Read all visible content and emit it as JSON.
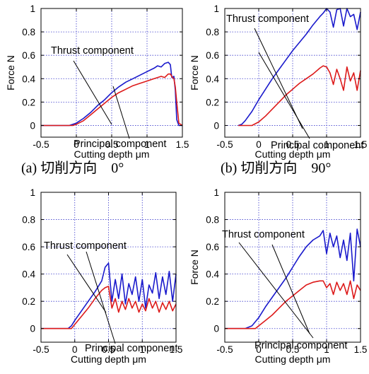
{
  "chart_data": [
    {
      "type": "line",
      "xlabel": "Cutting depth μm",
      "ylabel": "Force N",
      "xlim": [
        -0.5,
        1.5
      ],
      "ylim": [
        -0.1,
        1.0
      ],
      "xticks": [
        "-0.5",
        "0",
        "0.5",
        "1",
        "1.5"
      ],
      "yticks": [
        "0",
        "0.2",
        "0.4",
        "0.6",
        "0.8",
        "1"
      ],
      "grid": true,
      "caption": "(a) 切削方向　0°",
      "annotations": [
        "Thrust component",
        "Principal component"
      ],
      "series": [
        {
          "color": "#1a1acc",
          "x": [
            -0.5,
            -0.1,
            0.0,
            0.1,
            0.2,
            0.3,
            0.4,
            0.5,
            0.6,
            0.7,
            0.8,
            0.9,
            1.0,
            1.1,
            1.15,
            1.2,
            1.25,
            1.3,
            1.33,
            1.35,
            1.38,
            1.4,
            1.42,
            1.45,
            1.5
          ],
          "y": [
            0.0,
            0.0,
            0.02,
            0.06,
            0.11,
            0.17,
            0.22,
            0.28,
            0.33,
            0.37,
            0.4,
            0.43,
            0.46,
            0.49,
            0.51,
            0.5,
            0.53,
            0.54,
            0.52,
            0.41,
            0.42,
            0.3,
            0.05,
            0.0,
            0.0
          ]
        },
        {
          "color": "#dd1a1a",
          "x": [
            -0.5,
            -0.05,
            0.0,
            0.1,
            0.2,
            0.3,
            0.4,
            0.5,
            0.6,
            0.7,
            0.8,
            0.9,
            1.0,
            1.1,
            1.2,
            1.25,
            1.3,
            1.33,
            1.36,
            1.38,
            1.4,
            1.42,
            1.45,
            1.5
          ],
          "y": [
            0.0,
            0.0,
            0.01,
            0.04,
            0.09,
            0.14,
            0.19,
            0.24,
            0.28,
            0.31,
            0.34,
            0.36,
            0.38,
            0.4,
            0.42,
            0.41,
            0.44,
            0.44,
            0.41,
            0.4,
            0.33,
            0.2,
            0.02,
            0.0
          ]
        }
      ]
    },
    {
      "type": "line",
      "xlabel": "Cutting depth μm",
      "ylabel": "Force N",
      "xlim": [
        -0.5,
        1.5
      ],
      "ylim": [
        -0.1,
        1.0
      ],
      "xticks": [
        "-0.5",
        "0",
        "0.5",
        "1",
        "1.5"
      ],
      "yticks": [
        "0",
        "0.2",
        "0.4",
        "0.6",
        "0.8",
        "1"
      ],
      "grid": true,
      "caption": "(b) 切削方向　90°",
      "annotations": [
        "Thrust component",
        "Principal component"
      ],
      "series": [
        {
          "color": "#1a1acc",
          "x": [
            -0.3,
            -0.25,
            -0.2,
            -0.1,
            0.0,
            0.1,
            0.2,
            0.3,
            0.4,
            0.5,
            0.6,
            0.7,
            0.8,
            0.9,
            0.95,
            1.0,
            1.05,
            1.1,
            1.15,
            1.2,
            1.25,
            1.3,
            1.35,
            1.4,
            1.45,
            1.5
          ],
          "y": [
            0.0,
            0.01,
            0.04,
            0.12,
            0.22,
            0.31,
            0.4,
            0.48,
            0.56,
            0.64,
            0.71,
            0.78,
            0.86,
            0.93,
            0.96,
            1.0,
            0.97,
            0.84,
            0.99,
            1.0,
            0.85,
            1.0,
            0.93,
            0.95,
            0.82,
            0.97
          ]
        },
        {
          "color": "#dd1a1a",
          "x": [
            -0.3,
            -0.1,
            0.0,
            0.1,
            0.2,
            0.3,
            0.4,
            0.5,
            0.6,
            0.7,
            0.8,
            0.9,
            0.95,
            1.0,
            1.05,
            1.1,
            1.15,
            1.2,
            1.25,
            1.3,
            1.35,
            1.4,
            1.45,
            1.5
          ],
          "y": [
            0.0,
            0.0,
            0.03,
            0.08,
            0.14,
            0.2,
            0.26,
            0.31,
            0.36,
            0.4,
            0.44,
            0.49,
            0.51,
            0.5,
            0.45,
            0.35,
            0.48,
            0.4,
            0.3,
            0.5,
            0.38,
            0.45,
            0.3,
            0.47
          ]
        }
      ]
    },
    {
      "type": "line",
      "xlabel": "Cutting depth μm",
      "ylabel": "",
      "xlim": [
        -0.5,
        1.5
      ],
      "ylim": [
        -0.1,
        1.0
      ],
      "xticks": [
        "-0.5",
        "0",
        "0.5",
        "1",
        "1.5"
      ],
      "yticks": [
        "0",
        "0.2",
        "0.4",
        "0.6",
        "0.8",
        "1"
      ],
      "grid": true,
      "caption": "",
      "annotations": [
        "Thrust component",
        "Principal component"
      ],
      "series": [
        {
          "color": "#1a1acc",
          "x": [
            -0.5,
            -0.1,
            -0.05,
            0.0,
            0.1,
            0.2,
            0.3,
            0.4,
            0.45,
            0.5,
            0.55,
            0.6,
            0.65,
            0.7,
            0.75,
            0.8,
            0.85,
            0.9,
            0.95,
            1.0,
            1.05,
            1.1,
            1.15,
            1.2,
            1.25,
            1.3,
            1.35,
            1.4,
            1.45,
            1.5
          ],
          "y": [
            0.0,
            0.0,
            0.02,
            0.06,
            0.13,
            0.2,
            0.27,
            0.35,
            0.45,
            0.48,
            0.2,
            0.36,
            0.22,
            0.4,
            0.18,
            0.33,
            0.25,
            0.38,
            0.2,
            0.36,
            0.15,
            0.32,
            0.26,
            0.41,
            0.22,
            0.38,
            0.25,
            0.42,
            0.2,
            0.4
          ]
        },
        {
          "color": "#dd1a1a",
          "x": [
            -0.5,
            -0.05,
            0.0,
            0.1,
            0.2,
            0.3,
            0.4,
            0.45,
            0.5,
            0.55,
            0.6,
            0.65,
            0.7,
            0.75,
            0.8,
            0.85,
            0.9,
            0.95,
            1.0,
            1.05,
            1.1,
            1.15,
            1.2,
            1.25,
            1.3,
            1.35,
            1.4,
            1.45,
            1.5
          ],
          "y": [
            0.0,
            0.0,
            0.03,
            0.09,
            0.15,
            0.22,
            0.28,
            0.3,
            0.31,
            0.15,
            0.22,
            0.12,
            0.2,
            0.14,
            0.22,
            0.15,
            0.2,
            0.12,
            0.18,
            0.13,
            0.22,
            0.15,
            0.2,
            0.12,
            0.19,
            0.14,
            0.2,
            0.13,
            0.18
          ]
        }
      ]
    },
    {
      "type": "line",
      "xlabel": "Cutting depth μm",
      "ylabel": "Force N",
      "xlim": [
        -0.5,
        1.5
      ],
      "ylim": [
        -0.1,
        1.0
      ],
      "xticks": [
        "-0.5",
        "0",
        "0.5",
        "1",
        "1.5"
      ],
      "yticks": [
        "0",
        "0.2",
        "0.4",
        "0.6",
        "0.8",
        "1"
      ],
      "grid": true,
      "caption": "",
      "annotations": [
        "Thrust component",
        "Principal component"
      ],
      "series": [
        {
          "color": "#1a1acc",
          "x": [
            -0.5,
            -0.2,
            -0.1,
            0.0,
            0.1,
            0.2,
            0.3,
            0.4,
            0.5,
            0.6,
            0.7,
            0.8,
            0.9,
            0.95,
            1.0,
            1.05,
            1.1,
            1.15,
            1.2,
            1.25,
            1.3,
            1.35,
            1.4,
            1.45,
            1.5
          ],
          "y": [
            0.0,
            0.0,
            0.02,
            0.08,
            0.16,
            0.23,
            0.3,
            0.37,
            0.45,
            0.53,
            0.6,
            0.65,
            0.68,
            0.72,
            0.55,
            0.7,
            0.6,
            0.68,
            0.52,
            0.65,
            0.5,
            0.7,
            0.35,
            0.73,
            0.6
          ]
        },
        {
          "color": "#dd1a1a",
          "x": [
            -0.5,
            -0.05,
            0.0,
            0.1,
            0.2,
            0.3,
            0.4,
            0.5,
            0.6,
            0.7,
            0.8,
            0.9,
            0.95,
            1.0,
            1.05,
            1.1,
            1.15,
            1.2,
            1.25,
            1.3,
            1.35,
            1.4,
            1.45,
            1.5
          ],
          "y": [
            0.0,
            0.0,
            0.02,
            0.06,
            0.1,
            0.15,
            0.2,
            0.24,
            0.28,
            0.32,
            0.34,
            0.35,
            0.35,
            0.3,
            0.33,
            0.25,
            0.34,
            0.28,
            0.33,
            0.25,
            0.35,
            0.22,
            0.32,
            0.28
          ]
        }
      ]
    }
  ]
}
